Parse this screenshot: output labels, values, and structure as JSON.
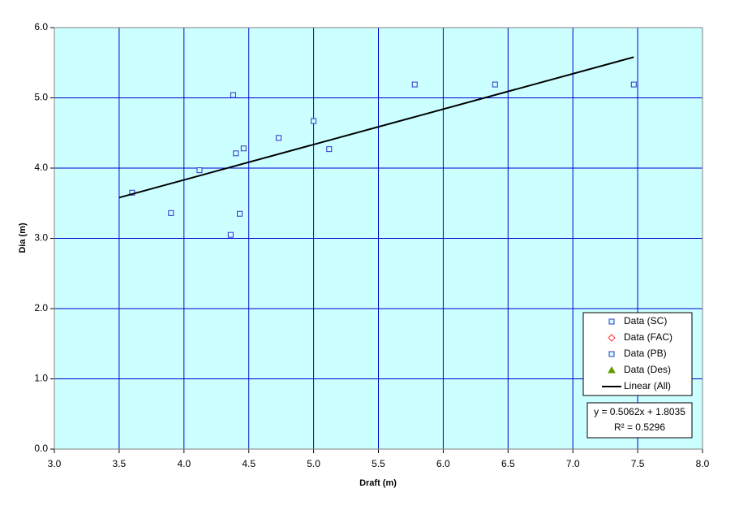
{
  "chart_data": {
    "type": "scatter",
    "xlabel": "Draft (m)",
    "ylabel": "Dia (m)",
    "xlim": [
      3,
      8
    ],
    "ylim": [
      0,
      6
    ],
    "xticks": [
      {
        "value": 3,
        "label": "3.0"
      },
      {
        "value": 3.5,
        "label": "3.5"
      },
      {
        "value": 4,
        "label": "4.0"
      },
      {
        "value": 4.5,
        "label": "4.5"
      },
      {
        "value": 5,
        "label": "5.0"
      },
      {
        "value": 5.5,
        "label": "5.5"
      },
      {
        "value": 6,
        "label": "6.0"
      },
      {
        "value": 6.5,
        "label": "6.5"
      },
      {
        "value": 7,
        "label": "7.0"
      },
      {
        "value": 7.5,
        "label": "7.5"
      },
      {
        "value": 8,
        "label": "8.0"
      }
    ],
    "yticks": [
      {
        "value": 0,
        "label": "0.0"
      },
      {
        "value": 1,
        "label": "1.0"
      },
      {
        "value": 2,
        "label": "2.0"
      },
      {
        "value": 3,
        "label": "3.0"
      },
      {
        "value": 4,
        "label": "4.0"
      },
      {
        "value": 5,
        "label": "5.0"
      },
      {
        "value": 6,
        "label": "6.0"
      }
    ],
    "grid": true,
    "legend": "lower right",
    "series": [
      {
        "name": "Data (SC)",
        "color": "#3333cc",
        "marker": "square",
        "x": [
          3.6,
          3.9,
          4.12,
          4.36,
          4.38,
          4.4,
          4.43,
          4.46,
          4.73,
          5.0,
          5.12,
          5.78,
          6.4,
          7.47
        ],
        "values": [
          3.65,
          3.36,
          3.97,
          3.05,
          5.04,
          4.21,
          3.35,
          4.28,
          4.43,
          4.67,
          4.27,
          5.19,
          5.19,
          5.19
        ]
      },
      {
        "name": "Data (FAC)",
        "color": "#ff3333",
        "marker": "diamond",
        "x": [],
        "values": []
      },
      {
        "name": "Data (PB)",
        "color": "#3333cc",
        "marker": "square",
        "x": [],
        "values": []
      },
      {
        "name": "Data (Des)",
        "color": "#669900",
        "marker": "triangle",
        "x": [],
        "values": []
      },
      {
        "name": "Linear (All)",
        "color": "#000000",
        "marker": "line",
        "x": [
          3.5,
          7.47
        ],
        "values": [
          3.58,
          5.58
        ]
      }
    ],
    "annotations": [
      "y = 0.5062x + 1.8035",
      "R² = 0.5296"
    ]
  }
}
